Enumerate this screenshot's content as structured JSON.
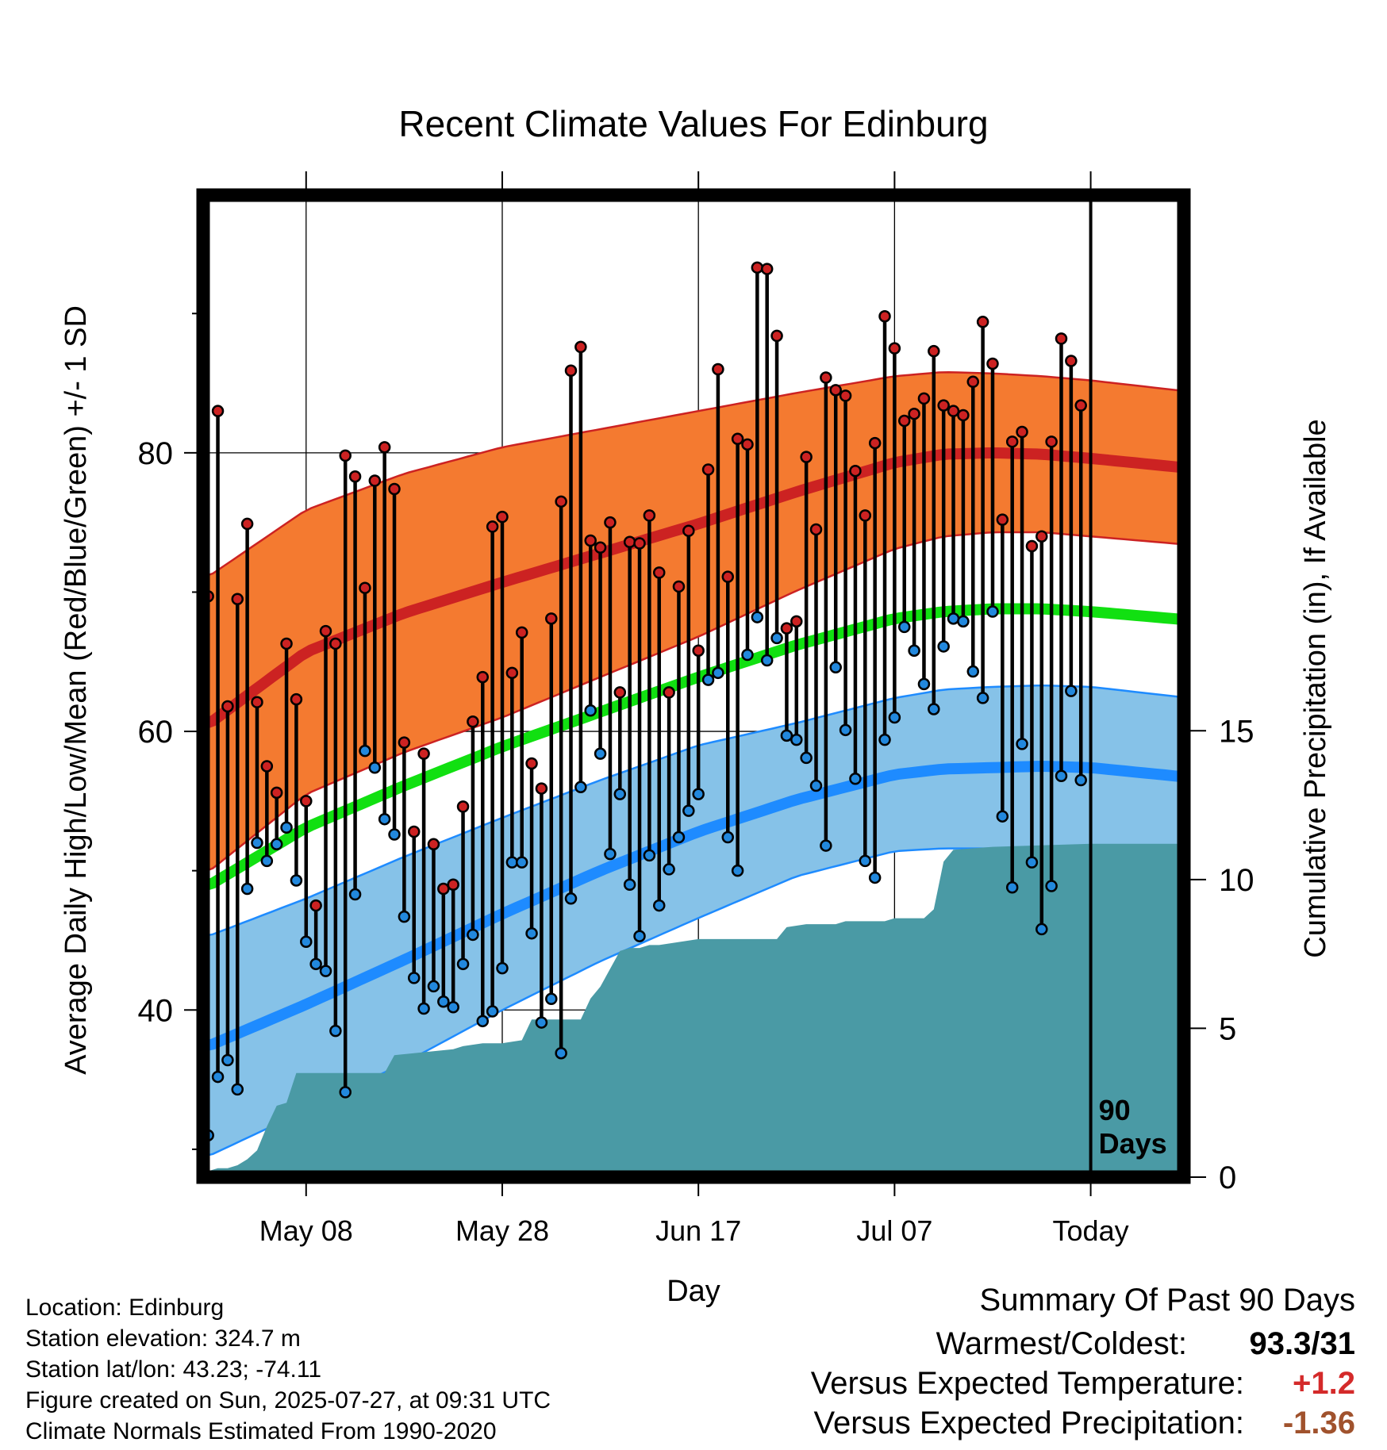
{
  "chart_data": {
    "type": "line",
    "title": "Recent Climate Values For Edinburg",
    "xlabel": "Day",
    "ylabel": "Average Daily High/Low/Mean (Red/Blue/Green) +/- 1 SD",
    "y2label": "Cumulative Precipitation (in), If Available",
    "x_tick_labels": [
      "May 08",
      "May 28",
      "Jun 17",
      "Jul 07",
      "Today"
    ],
    "x_tick_days": [
      10,
      30,
      50,
      70,
      90
    ],
    "day_range": [
      -0.5,
      99.5
    ],
    "y_ticks": [
      40,
      60,
      80
    ],
    "ylim": [
      28,
      98.5
    ],
    "y2_ticks": [
      0,
      5,
      10,
      15
    ],
    "y2lim": [
      0,
      33
    ],
    "grid": true,
    "today_label": "90\nDays",
    "colors": {
      "high_band": "#f47a30",
      "high_mean": "#cc2222",
      "low_band": "#86c2e8",
      "low_mean": "#1e8bff",
      "avg_mean": "#11e011",
      "precip": "#4a9aa5",
      "high_point": "#cc2222",
      "low_point": "#2288dd"
    },
    "normals": {
      "day": [
        0,
        10,
        20,
        30,
        40,
        50,
        60,
        70,
        75,
        80,
        85,
        90,
        100
      ],
      "high_mean": [
        60.5,
        65.7,
        68.5,
        70.7,
        72.8,
        74.9,
        77.2,
        79.3,
        79.9,
        80.0,
        79.9,
        79.6,
        78.9
      ],
      "high_sd": [
        10.6,
        10.2,
        10.0,
        9.7,
        8.9,
        8.1,
        7.1,
        6.2,
        5.9,
        5.7,
        5.6,
        5.6,
        5.5
      ],
      "low_mean": [
        37.4,
        40.4,
        43.6,
        46.9,
        50.0,
        52.8,
        55.1,
        56.9,
        57.3,
        57.4,
        57.5,
        57.4,
        56.7
      ],
      "low_sd": [
        7.9,
        7.6,
        7.4,
        6.9,
        6.5,
        6.2,
        5.5,
        5.5,
        5.7,
        5.8,
        5.8,
        5.8,
        5.7
      ],
      "avg_mean": [
        48.9,
        53.1,
        56.1,
        58.9,
        61.4,
        63.9,
        66.2,
        68.1,
        68.6,
        68.8,
        68.8,
        68.6,
        68.0
      ]
    },
    "series": [
      {
        "name": "High",
        "values": [
          69.7,
          83.0,
          61.8,
          69.5,
          74.9,
          62.1,
          57.5,
          55.6,
          66.3,
          62.3,
          55.0,
          47.5,
          67.2,
          66.3,
          79.8,
          78.3,
          70.3,
          78.0,
          80.4,
          77.4,
          59.2,
          52.8,
          58.4,
          51.9,
          48.7,
          49.0,
          54.6,
          60.7,
          63.9,
          74.7,
          75.4,
          64.2,
          67.1,
          57.7,
          55.9,
          68.1,
          76.5,
          85.9,
          87.6,
          73.7,
          73.2,
          75.0,
          62.8,
          73.6,
          73.5,
          75.5,
          71.4,
          62.8,
          70.4,
          74.4,
          65.8,
          78.8,
          86.0,
          71.1,
          81.0,
          80.6,
          93.3,
          93.2,
          88.4,
          67.4,
          67.9,
          79.7,
          74.5,
          85.4,
          84.5,
          84.1,
          78.7,
          75.5,
          80.7,
          89.8,
          87.5,
          82.3,
          82.8,
          83.9,
          87.3,
          83.4,
          83.0,
          82.7,
          85.1,
          89.4,
          86.4,
          75.2,
          80.8,
          81.5,
          73.3,
          74.0,
          80.8,
          88.2,
          86.6,
          83.4
        ]
      },
      {
        "name": "Low",
        "values": [
          31.0,
          35.2,
          36.4,
          34.3,
          48.7,
          52.0,
          50.7,
          51.9,
          53.1,
          49.3,
          44.9,
          43.3,
          42.8,
          38.5,
          34.1,
          48.3,
          58.6,
          57.4,
          53.7,
          52.6,
          46.7,
          42.3,
          40.1,
          41.7,
          40.6,
          40.2,
          43.3,
          45.4,
          39.2,
          39.9,
          43.0,
          50.6,
          50.6,
          45.5,
          39.1,
          40.8,
          36.9,
          48.0,
          56.0,
          61.5,
          58.4,
          51.2,
          55.5,
          49.0,
          45.3,
          51.1,
          47.5,
          50.1,
          52.4,
          54.3,
          55.5,
          63.7,
          64.2,
          52.4,
          50.0,
          65.5,
          68.2,
          65.1,
          66.7,
          59.7,
          59.4,
          58.1,
          56.1,
          51.8,
          64.6,
          60.1,
          56.6,
          50.7,
          49.5,
          59.4,
          61.0,
          67.5,
          65.8,
          63.4,
          61.6,
          66.1,
          68.1,
          67.9,
          64.3,
          62.4,
          68.6,
          53.9,
          48.8,
          59.1,
          50.6,
          45.8,
          48.9,
          56.8,
          62.9,
          56.5
        ]
      }
    ],
    "precip_cumulative": {
      "day": [
        0,
        1,
        2,
        3,
        4,
        5,
        6,
        7,
        8,
        9,
        10,
        11,
        18,
        19,
        25,
        26,
        28,
        30,
        32,
        33,
        38,
        39,
        40,
        42,
        43,
        44,
        45,
        46,
        48,
        50,
        58,
        59,
        61,
        64,
        65,
        69,
        70,
        73,
        74,
        75,
        76,
        80,
        90,
        99
      ],
      "values": [
        0.2,
        0.3,
        0.3,
        0.4,
        0.6,
        0.9,
        1.7,
        2.4,
        2.5,
        3.5,
        3.5,
        3.5,
        3.5,
        4.1,
        4.3,
        4.4,
        4.5,
        4.5,
        4.6,
        5.3,
        5.3,
        6.0,
        6.4,
        7.6,
        7.7,
        7.7,
        7.8,
        7.8,
        7.9,
        8.0,
        8.0,
        8.4,
        8.5,
        8.5,
        8.6,
        8.6,
        8.7,
        8.7,
        9.0,
        10.6,
        11.0,
        11.1,
        11.2,
        11.2
      ]
    }
  },
  "station": {
    "location": "Location: Edinburg",
    "elevation": "Station elevation: 324.7 m",
    "latlon": "Station lat/lon: 43.23; -74.11",
    "created": "Figure created on Sun, 2025-07-27, at 09:31 UTC",
    "normals_period": "Climate Normals Estimated From 1990-2020"
  },
  "summary": {
    "heading": "Summary Of Past 90 Days",
    "warmest_coldest_label": "Warmest/Coldest:",
    "warmest_coldest_value": "93.3/31",
    "temp_label": "Versus Expected Temperature:",
    "temp_value": "+1.2",
    "temp_color": "#d42a2a",
    "precip_label": "Versus Expected Precipitation:",
    "precip_value": "-1.36",
    "precip_color": "#a0522d"
  }
}
